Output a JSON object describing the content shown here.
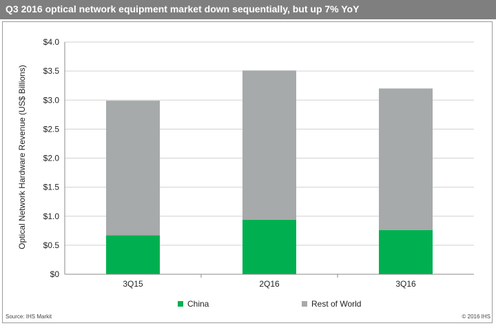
{
  "chart_data": {
    "type": "bar",
    "stacked": true,
    "title": "Q3 2016 optical network equipment market down sequentially, but up 7% YoY",
    "ylabel": "Optical Network Hardware Revenue (US$ Billions)",
    "xlabel": "",
    "categories": [
      "3Q15",
      "2Q16",
      "3Q16"
    ],
    "series": [
      {
        "name": "China",
        "color": "#00b050",
        "values": [
          0.67,
          0.94,
          0.76
        ]
      },
      {
        "name": "Rest of World",
        "color": "#a6aaaa",
        "values": [
          2.32,
          2.57,
          2.44
        ]
      }
    ],
    "ylim": [
      0,
      4.0
    ],
    "yticks": [
      {
        "value": 0,
        "label": "$0"
      },
      {
        "value": 0.5,
        "label": "$0.5"
      },
      {
        "value": 1.0,
        "label": "$1.0"
      },
      {
        "value": 1.5,
        "label": "$1.5"
      },
      {
        "value": 2.0,
        "label": "$2.0"
      },
      {
        "value": 2.5,
        "label": "$2.5"
      },
      {
        "value": 3.0,
        "label": "$3.0"
      },
      {
        "value": 3.5,
        "label": "$3.5"
      },
      {
        "value": 4.0,
        "label": "$4.0"
      }
    ],
    "grid": true,
    "legend_position": "bottom"
  },
  "footer": {
    "source": "Source: IHS Markit",
    "copyright": "© 2016 IHS"
  }
}
